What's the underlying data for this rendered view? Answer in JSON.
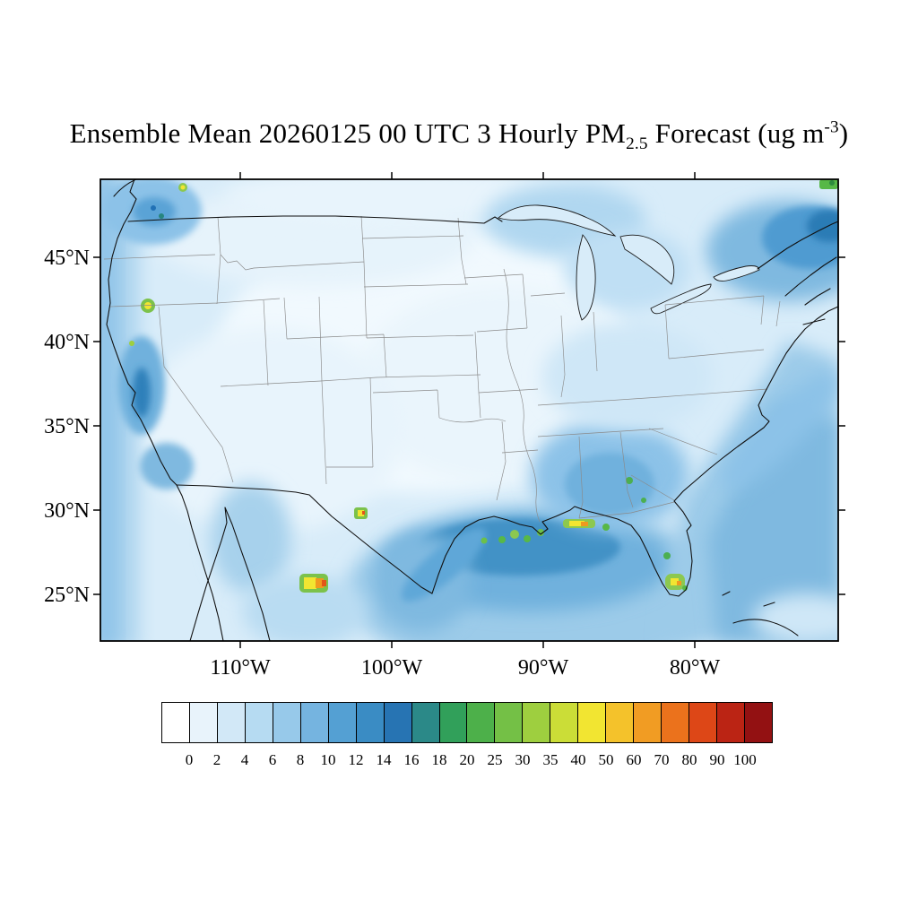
{
  "title": {
    "part1": "Ensemble Mean 20260125 00 UTC 3 Hourly PM",
    "sub": "2.5",
    "part2": " Forecast (ug m",
    "sup": "-3",
    "part3": ")"
  },
  "axes": {
    "lat_ticks": [
      "45°N",
      "40°N",
      "35°N",
      "30°N",
      "25°N"
    ],
    "lon_ticks": [
      "110°W",
      "100°W",
      "90°W",
      "80°W"
    ]
  },
  "colorbar": {
    "levels": [
      "0",
      "2",
      "4",
      "6",
      "8",
      "10",
      "12",
      "14",
      "16",
      "18",
      "20",
      "25",
      "30",
      "35",
      "40",
      "50",
      "60",
      "70",
      "80",
      "90",
      "100"
    ],
    "colors": [
      "#ffffff",
      "#e8f3fb",
      "#d2e8f7",
      "#b6dbf2",
      "#97c9ea",
      "#75b4e0",
      "#54a0d3",
      "#3a8cc4",
      "#2774b3",
      "#2b8988",
      "#31a05a",
      "#4db04a",
      "#74c046",
      "#9ecf3f",
      "#cbdd37",
      "#f2e531",
      "#f4c22b",
      "#f19c23",
      "#eb721c",
      "#dd4717",
      "#bb2414",
      "#931112"
    ]
  },
  "chart_data": {
    "type": "heatmap",
    "title": "Ensemble Mean 20260125 00 UTC 3 Hourly PM2.5 Forecast (ug m-3)",
    "statistic": "Ensemble Mean",
    "valid_time": "20260125 00 UTC",
    "cadence": "3 Hourly",
    "variable": "PM2.5",
    "units": "ug m-3",
    "region": "Contiguous United States with parts of Canada, Mexico, Gulf of Mexico and western Atlantic",
    "lat_tick_values": [
      45,
      40,
      35,
      30,
      25
    ],
    "lon_tick_values": [
      -110,
      -100,
      -90,
      -80
    ],
    "contour_levels": [
      0,
      2,
      4,
      6,
      8,
      10,
      12,
      14,
      16,
      18,
      20,
      25,
      30,
      35,
      40,
      50,
      60,
      70,
      80,
      90,
      100
    ],
    "legend_position": "bottom horizontal colorbar",
    "field_summary": [
      {
        "region": "Central CONUS interior (plains, midwest)",
        "value_ugm3": "0-4"
      },
      {
        "region": "Northern Gulf of Mexico and LA/MS/AL coast",
        "value_ugm3": "6-12 with 20-40 spots near Mobile Bay and the delta"
      },
      {
        "region": "West Texas / northern Mexico hotspot near 105W 26N",
        "value_ugm3": "30-60"
      },
      {
        "region": "Small hotspot near 102W 29.5N (TX/Mexico border)",
        "value_ugm3": "25-50"
      },
      {
        "region": "Southern Oregon hotspot near 42N",
        "value_ugm3": "20-30"
      },
      {
        "region": "Central and South Florida spots",
        "value_ugm3": "14-35"
      },
      {
        "region": "Northeast US / Canadian Maritimes corner",
        "value_ugm3": "8-16, small 14-20 patch at far corner"
      },
      {
        "region": "California Central Valley",
        "value_ugm3": "8-12"
      },
      {
        "region": "Pacific Northwest / Puget Sound",
        "value_ugm3": "6-12"
      },
      {
        "region": "Offshore Atlantic band from Florida to New England",
        "value_ugm3": "4-8"
      }
    ]
  }
}
